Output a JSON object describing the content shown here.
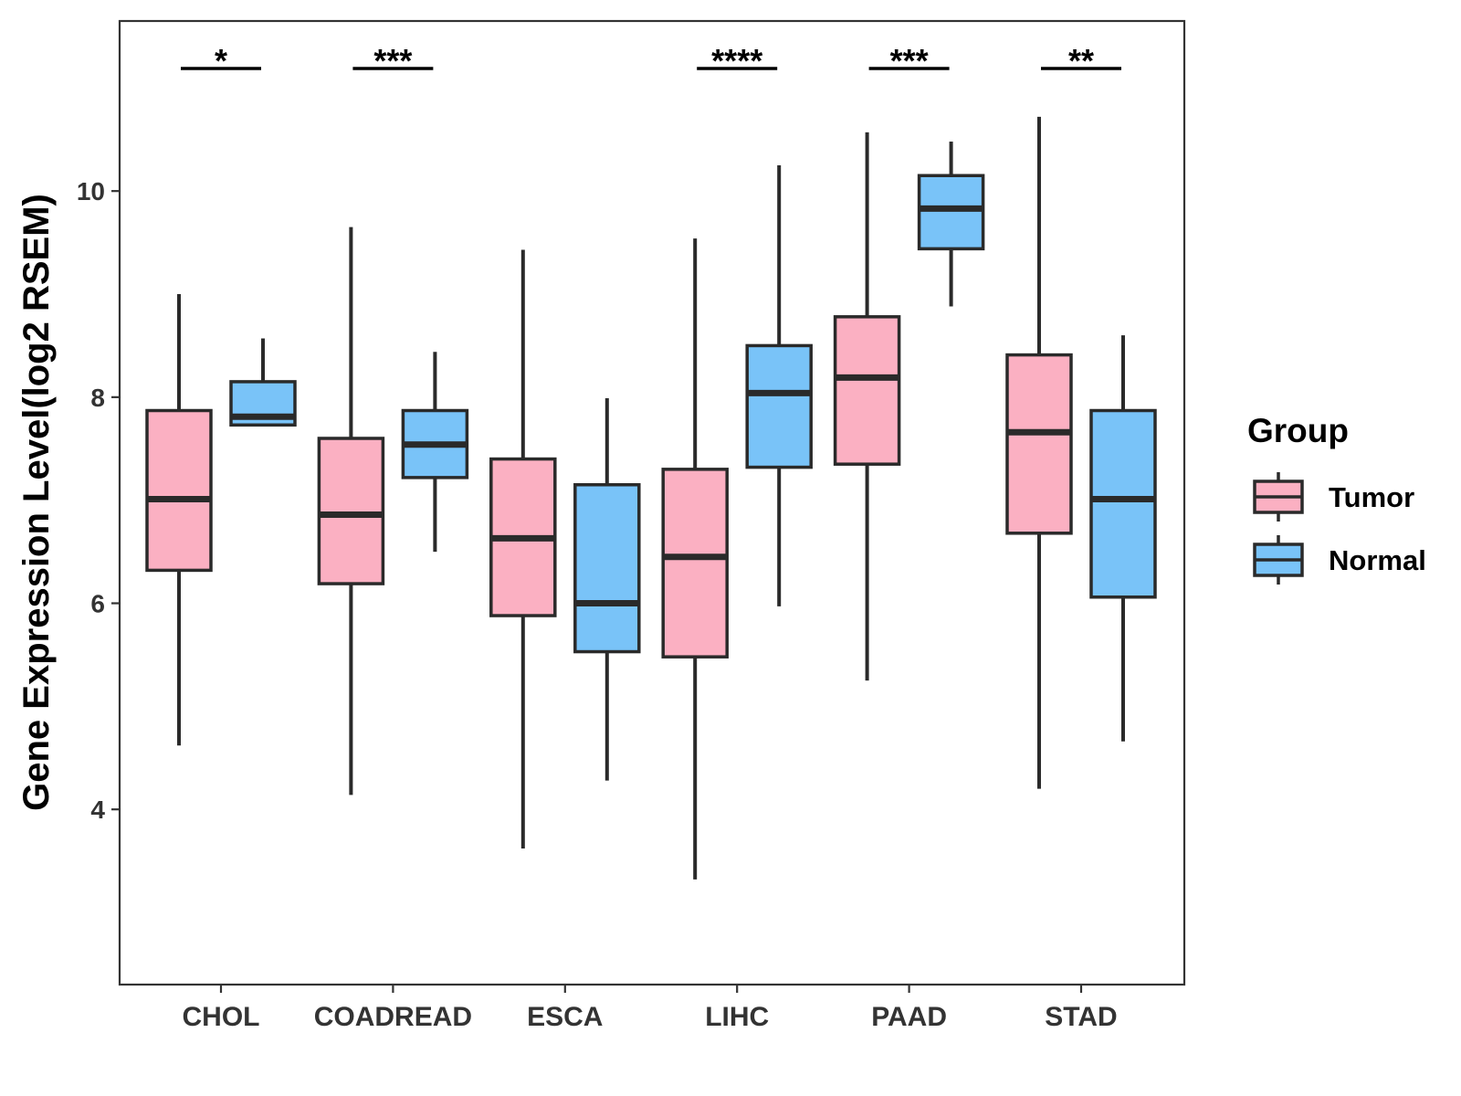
{
  "chart_data": {
    "type": "boxplot",
    "title": "",
    "xlabel": "",
    "ylabel": "Gene Expression Level(log2 RSEM)",
    "ylim": [
      2.3,
      11.65
    ],
    "yticks": [
      4,
      6,
      8,
      10
    ],
    "categories": [
      "CHOL",
      "COADREAD",
      "ESCA",
      "LIHC",
      "PAAD",
      "STAD"
    ],
    "series": [
      {
        "name": "Tumor",
        "color": "#FBB0C2",
        "boxes": [
          {
            "min": 4.62,
            "q1": 6.32,
            "median": 7.01,
            "q3": 7.87,
            "max": 9.0
          },
          {
            "min": 4.14,
            "q1": 6.19,
            "median": 6.86,
            "q3": 7.6,
            "max": 9.65
          },
          {
            "min": 3.62,
            "q1": 5.88,
            "median": 6.63,
            "q3": 7.4,
            "max": 9.43
          },
          {
            "min": 3.32,
            "q1": 5.48,
            "median": 6.45,
            "q3": 7.3,
            "max": 9.54
          },
          {
            "min": 5.25,
            "q1": 7.35,
            "median": 8.19,
            "q3": 8.78,
            "max": 10.57
          },
          {
            "min": 4.2,
            "q1": 6.68,
            "median": 7.66,
            "q3": 8.41,
            "max": 10.72
          }
        ]
      },
      {
        "name": "Normal",
        "color": "#79C3F8",
        "boxes": [
          {
            "min": 7.73,
            "q1": 7.73,
            "median": 7.81,
            "q3": 8.15,
            "max": 8.57
          },
          {
            "min": 6.5,
            "q1": 7.22,
            "median": 7.54,
            "q3": 7.87,
            "max": 8.44
          },
          {
            "min": 4.28,
            "q1": 5.53,
            "median": 6.0,
            "q3": 7.15,
            "max": 7.99
          },
          {
            "min": 5.97,
            "q1": 7.32,
            "median": 8.04,
            "q3": 8.5,
            "max": 10.25
          },
          {
            "min": 8.88,
            "q1": 9.44,
            "median": 9.83,
            "q3": 10.15,
            "max": 10.48
          },
          {
            "min": 4.66,
            "q1": 6.06,
            "median": 7.01,
            "q3": 7.87,
            "max": 8.6
          }
        ]
      }
    ],
    "significance": [
      "*",
      "***",
      "",
      "****",
      "***",
      "**"
    ],
    "legend": {
      "title": "Group",
      "position": "right"
    },
    "grid": false
  }
}
